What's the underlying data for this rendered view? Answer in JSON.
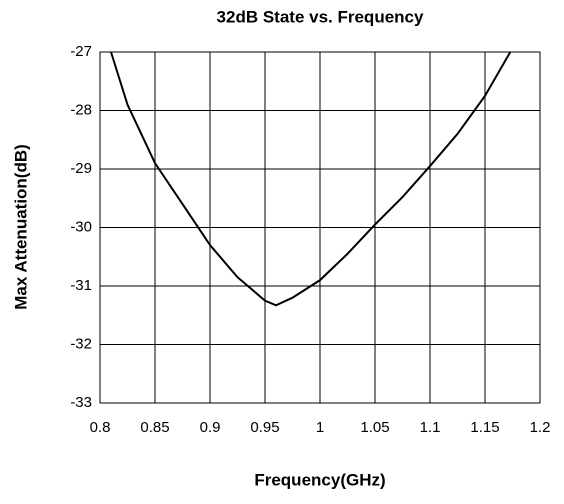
{
  "chart_data": {
    "type": "line",
    "title": "32dB State vs. Frequency",
    "x_label": "Frequency(GHz)",
    "y_label": "Max Attenuation(dB)",
    "x": [
      0.81,
      0.825,
      0.85,
      0.875,
      0.9,
      0.925,
      0.95,
      0.96,
      0.975,
      1.0,
      1.025,
      1.05,
      1.075,
      1.1,
      1.125,
      1.15,
      1.173
    ],
    "series": [
      {
        "color": "#000000",
        "values": [
          -27,
          -27.9,
          -28.9,
          -29.6,
          -30.3,
          -30.85,
          -31.25,
          -31.33,
          -31.2,
          -30.9,
          -30.45,
          -29.95,
          -29.48,
          -28.95,
          -28.4,
          -27.75,
          -27
        ]
      }
    ],
    "xlim": [
      0.8,
      1.2
    ],
    "xticks": [
      0.8,
      0.85,
      0.9,
      0.95,
      1,
      1.05,
      1.1,
      1.15,
      1.2
    ],
    "ylim": [
      -33,
      -27
    ],
    "yticks": [
      -33,
      -32,
      -31,
      -30,
      -29,
      -28,
      -27
    ],
    "grid": true
  }
}
